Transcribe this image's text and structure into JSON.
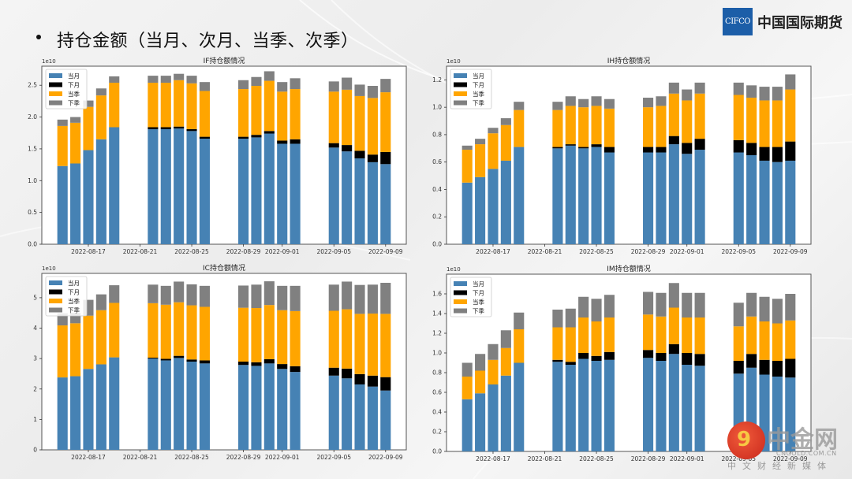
{
  "header": {
    "title": "持仓金额（当月、次月、当季、次季）"
  },
  "logo": {
    "mark": "CIFCO",
    "name": "中国国际期货",
    "color": "#1c5ea8"
  },
  "watermark": {
    "name": "中金网",
    "url": "CNGOLD.COM.CN",
    "subtitle": "中文财经新媒体"
  },
  "colors": {
    "当月": "#4682b4",
    "下月": "#000000",
    "当季": "#ffa500",
    "下季": "#808080"
  },
  "chart_data": [
    {
      "type": "bar",
      "stacked": true,
      "title": "IF持仓额情况",
      "offset_label": "1e10",
      "xlabel": "",
      "ylabel": "",
      "ylim": [
        0,
        2.8
      ],
      "yticks": [
        "0.0",
        "0.5",
        "1.0",
        "1.5",
        "2.0",
        "2.5"
      ],
      "ytick_values": [
        0,
        0.5,
        1.0,
        1.5,
        2.0,
        2.5
      ],
      "legend": "top-left",
      "x": [
        "2022-08-15",
        "2022-08-16",
        "2022-08-17",
        "2022-08-18",
        "2022-08-19",
        "2022-08-22",
        "2022-08-23",
        "2022-08-24",
        "2022-08-25",
        "2022-08-26",
        "2022-08-29",
        "2022-08-30",
        "2022-08-31",
        "2022-09-01",
        "2022-09-02",
        "2022-09-05",
        "2022-09-06",
        "2022-09-07",
        "2022-09-08",
        "2022-09-09"
      ],
      "xticks": [
        "2022-08-17",
        "2022-08-21",
        "2022-08-25",
        "2022-08-29",
        "2022-09-01",
        "2022-09-05",
        "2022-09-09"
      ],
      "series": [
        {
          "name": "当月",
          "values": [
            1.23,
            1.27,
            1.48,
            1.65,
            1.84,
            1.81,
            1.81,
            1.82,
            1.78,
            1.66,
            1.66,
            1.68,
            1.74,
            1.58,
            1.58,
            1.52,
            1.46,
            1.35,
            1.29,
            1.26
          ]
        },
        {
          "name": "下月",
          "values": [
            0,
            0,
            0,
            0,
            0,
            0.03,
            0.03,
            0.03,
            0.03,
            0.03,
            0.03,
            0.04,
            0.04,
            0.05,
            0.07,
            0.07,
            0.1,
            0.12,
            0.12,
            0.19
          ]
        },
        {
          "name": "当季",
          "values": [
            0.63,
            0.64,
            0.68,
            0.69,
            0.7,
            0.7,
            0.7,
            0.73,
            0.72,
            0.72,
            0.75,
            0.77,
            0.79,
            0.77,
            0.79,
            0.81,
            0.87,
            0.86,
            0.89,
            0.94
          ]
        },
        {
          "name": "下季",
          "values": [
            0.1,
            0.09,
            0.1,
            0.11,
            0.1,
            0.11,
            0.11,
            0.1,
            0.12,
            0.14,
            0.14,
            0.14,
            0.15,
            0.15,
            0.17,
            0.16,
            0.19,
            0.18,
            0.19,
            0.21
          ]
        }
      ]
    },
    {
      "type": "bar",
      "stacked": true,
      "title": "IH持仓额情况",
      "offset_label": "1e10",
      "xlabel": "",
      "ylabel": "",
      "ylim": [
        0,
        1.3
      ],
      "yticks": [
        "0.0",
        "0.2",
        "0.4",
        "0.6",
        "0.8",
        "1.0",
        "1.2"
      ],
      "ytick_values": [
        0,
        0.2,
        0.4,
        0.6,
        0.8,
        1.0,
        1.2
      ],
      "legend": "top-left",
      "x": [
        "2022-08-15",
        "2022-08-16",
        "2022-08-17",
        "2022-08-18",
        "2022-08-19",
        "2022-08-22",
        "2022-08-23",
        "2022-08-24",
        "2022-08-25",
        "2022-08-26",
        "2022-08-29",
        "2022-08-30",
        "2022-08-31",
        "2022-09-01",
        "2022-09-02",
        "2022-09-05",
        "2022-09-06",
        "2022-09-07",
        "2022-09-08",
        "2022-09-09"
      ],
      "xticks": [
        "2022-08-17",
        "2022-08-21",
        "2022-08-25",
        "2022-08-29",
        "2022-09-01",
        "2022-09-05",
        "2022-09-09"
      ],
      "series": [
        {
          "name": "当月",
          "values": [
            0.45,
            0.49,
            0.55,
            0.61,
            0.71,
            0.7,
            0.72,
            0.7,
            0.71,
            0.67,
            0.67,
            0.67,
            0.73,
            0.66,
            0.69,
            0.67,
            0.65,
            0.61,
            0.6,
            0.61
          ]
        },
        {
          "name": "下月",
          "values": [
            0,
            0,
            0,
            0,
            0,
            0.01,
            0.01,
            0.01,
            0.02,
            0.04,
            0.04,
            0.04,
            0.06,
            0.08,
            0.08,
            0.09,
            0.09,
            0.1,
            0.11,
            0.14
          ]
        },
        {
          "name": "当季",
          "values": [
            0.24,
            0.24,
            0.26,
            0.26,
            0.27,
            0.27,
            0.28,
            0.29,
            0.28,
            0.28,
            0.29,
            0.3,
            0.31,
            0.31,
            0.33,
            0.33,
            0.33,
            0.34,
            0.34,
            0.38
          ]
        },
        {
          "name": "下季",
          "values": [
            0.03,
            0.04,
            0.04,
            0.05,
            0.06,
            0.06,
            0.07,
            0.06,
            0.07,
            0.07,
            0.07,
            0.07,
            0.08,
            0.08,
            0.08,
            0.09,
            0.09,
            0.1,
            0.1,
            0.11
          ]
        }
      ]
    },
    {
      "type": "bar",
      "stacked": true,
      "title": "IC持仓额情况",
      "offset_label": "1e10",
      "xlabel": "",
      "ylabel": "",
      "ylim": [
        0,
        5.8
      ],
      "yticks": [
        "0",
        "1",
        "2",
        "3",
        "4",
        "5"
      ],
      "ytick_values": [
        0,
        1,
        2,
        3,
        4,
        5
      ],
      "legend": "top-left",
      "x": [
        "2022-08-15",
        "2022-08-16",
        "2022-08-17",
        "2022-08-18",
        "2022-08-19",
        "2022-08-22",
        "2022-08-23",
        "2022-08-24",
        "2022-08-25",
        "2022-08-26",
        "2022-08-29",
        "2022-08-30",
        "2022-08-31",
        "2022-09-01",
        "2022-09-02",
        "2022-09-05",
        "2022-09-06",
        "2022-09-07",
        "2022-09-08",
        "2022-09-09"
      ],
      "xticks": [
        "2022-08-17",
        "2022-08-21",
        "2022-08-25",
        "2022-08-29",
        "2022-09-01",
        "2022-09-05",
        "2022-09-09"
      ],
      "series": [
        {
          "name": "当月",
          "values": [
            2.38,
            2.42,
            2.66,
            2.81,
            3.04,
            3.0,
            2.94,
            3.02,
            2.9,
            2.84,
            2.79,
            2.76,
            2.84,
            2.66,
            2.56,
            2.44,
            2.35,
            2.15,
            2.08,
            1.95
          ]
        },
        {
          "name": "下月",
          "values": [
            0,
            0,
            0,
            0,
            0,
            0.03,
            0.05,
            0.07,
            0.07,
            0.1,
            0.11,
            0.12,
            0.14,
            0.16,
            0.19,
            0.26,
            0.32,
            0.34,
            0.36,
            0.44
          ]
        },
        {
          "name": "当季",
          "values": [
            1.71,
            1.74,
            1.75,
            1.78,
            1.79,
            1.79,
            1.78,
            1.76,
            1.78,
            1.76,
            1.77,
            1.78,
            1.78,
            1.77,
            1.81,
            1.87,
            1.95,
            1.98,
            2.04,
            2.08
          ]
        },
        {
          "name": "下季",
          "values": [
            0.4,
            0.34,
            0.52,
            0.52,
            0.58,
            0.61,
            0.62,
            0.68,
            0.69,
            0.69,
            0.73,
            0.77,
            0.78,
            0.8,
            0.83,
            0.86,
            0.91,
            0.95,
            0.95,
            1.02
          ]
        }
      ]
    },
    {
      "type": "bar",
      "stacked": true,
      "title": "IM持仓额情况",
      "offset_label": "1e10",
      "xlabel": "",
      "ylabel": "",
      "ylim": [
        0,
        1.8
      ],
      "yticks": [
        "0.0",
        "0.2",
        "0.4",
        "0.6",
        "0.8",
        "1.0",
        "1.2",
        "1.4",
        "1.6"
      ],
      "ytick_values": [
        0,
        0.2,
        0.4,
        0.6,
        0.8,
        1.0,
        1.2,
        1.4,
        1.6
      ],
      "legend": "top-left",
      "x": [
        "2022-08-15",
        "2022-08-16",
        "2022-08-17",
        "2022-08-18",
        "2022-08-19",
        "2022-08-22",
        "2022-08-23",
        "2022-08-24",
        "2022-08-25",
        "2022-08-26",
        "2022-08-29",
        "2022-08-30",
        "2022-08-31",
        "2022-09-01",
        "2022-09-02",
        "2022-09-05",
        "2022-09-06",
        "2022-09-07",
        "2022-09-08",
        "2022-09-09"
      ],
      "xticks": [
        "2022-08-17",
        "2022-08-21",
        "2022-08-25",
        "2022-08-29",
        "2022-09-01",
        "2022-09-05",
        "2022-09-09"
      ],
      "series": [
        {
          "name": "当月",
          "values": [
            0.53,
            0.59,
            0.68,
            0.77,
            0.9,
            0.91,
            0.88,
            0.94,
            0.92,
            0.93,
            0.95,
            0.92,
            0.99,
            0.88,
            0.87,
            0.79,
            0.85,
            0.78,
            0.76,
            0.75
          ]
        },
        {
          "name": "下月",
          "values": [
            0,
            0,
            0,
            0,
            0,
            0.02,
            0.03,
            0.06,
            0.05,
            0.08,
            0.08,
            0.08,
            0.1,
            0.12,
            0.12,
            0.13,
            0.14,
            0.15,
            0.16,
            0.19
          ]
        },
        {
          "name": "当季",
          "values": [
            0.23,
            0.23,
            0.25,
            0.28,
            0.34,
            0.33,
            0.35,
            0.36,
            0.35,
            0.35,
            0.36,
            0.37,
            0.37,
            0.36,
            0.37,
            0.35,
            0.38,
            0.39,
            0.38,
            0.39
          ]
        },
        {
          "name": "下季",
          "values": [
            0.14,
            0.17,
            0.16,
            0.18,
            0.17,
            0.18,
            0.19,
            0.21,
            0.23,
            0.23,
            0.23,
            0.24,
            0.25,
            0.25,
            0.25,
            0.24,
            0.24,
            0.25,
            0.25,
            0.27
          ]
        }
      ]
    }
  ]
}
